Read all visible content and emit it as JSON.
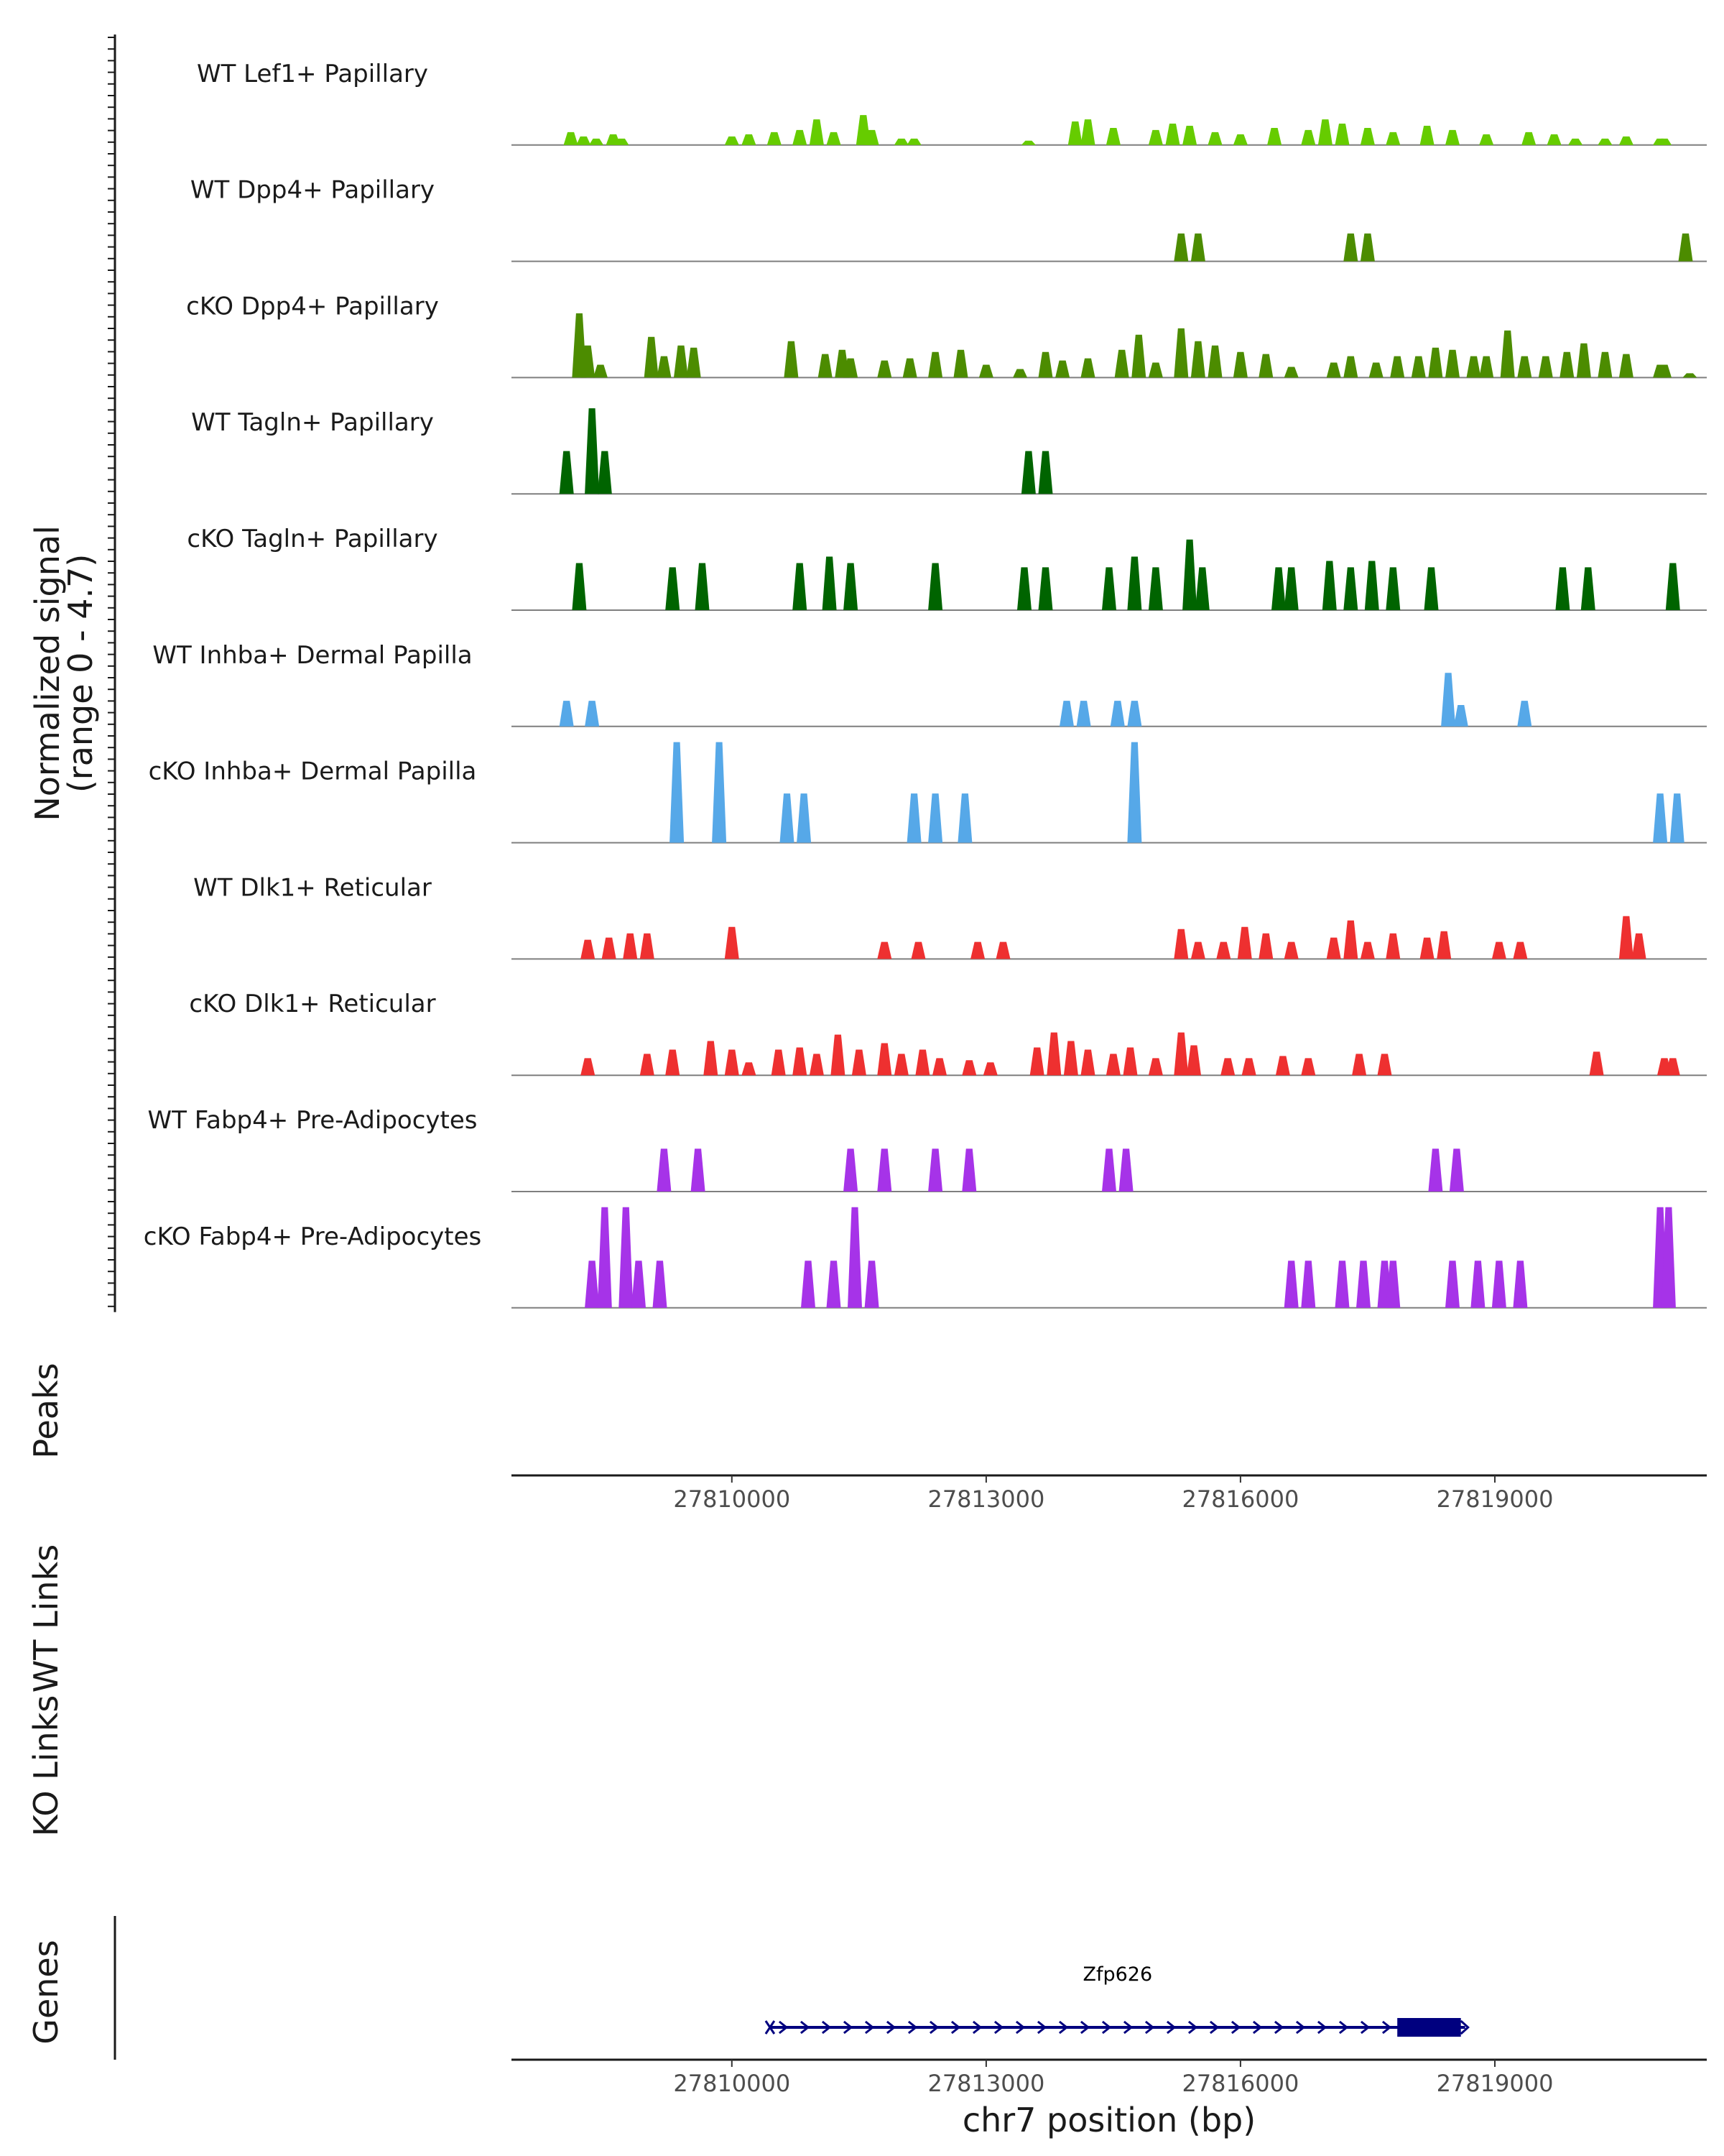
{
  "chart_data": {
    "type": "area",
    "region": {
      "chromosome": "chr7",
      "start": 27807400,
      "end": 27821500
    },
    "y_axis": {
      "title_line1": "Normalized signal",
      "title_line2": "(range 0 - 4.7)",
      "ylim": [
        0,
        4.7
      ]
    },
    "tracks": [
      {
        "name": "WT Lef1+ Papillary",
        "color": "#66cc00",
        "peaks": [
          [
            27808100,
            0.6
          ],
          [
            27808250,
            0.4
          ],
          [
            27808400,
            0.3
          ],
          [
            27808600,
            0.5
          ],
          [
            27808700,
            0.3
          ],
          [
            27810000,
            0.4
          ],
          [
            27810200,
            0.5
          ],
          [
            27810500,
            0.6
          ],
          [
            27810800,
            0.7
          ],
          [
            27811000,
            1.2
          ],
          [
            27811200,
            0.6
          ],
          [
            27811550,
            1.4
          ],
          [
            27811650,
            0.7
          ],
          [
            27812000,
            0.3
          ],
          [
            27812150,
            0.3
          ],
          [
            27813500,
            0.2
          ],
          [
            27814050,
            1.1
          ],
          [
            27814200,
            1.2
          ],
          [
            27814500,
            0.8
          ],
          [
            27815000,
            0.7
          ],
          [
            27815200,
            1.0
          ],
          [
            27815400,
            0.9
          ],
          [
            27815700,
            0.6
          ],
          [
            27816000,
            0.5
          ],
          [
            27816400,
            0.8
          ],
          [
            27816800,
            0.7
          ],
          [
            27817000,
            1.2
          ],
          [
            27817200,
            1.0
          ],
          [
            27817500,
            0.8
          ],
          [
            27817800,
            0.6
          ],
          [
            27818200,
            0.9
          ],
          [
            27818500,
            0.7
          ],
          [
            27818900,
            0.5
          ],
          [
            27819400,
            0.6
          ],
          [
            27819700,
            0.5
          ],
          [
            27819950,
            0.3
          ],
          [
            27820300,
            0.3
          ],
          [
            27820550,
            0.4
          ],
          [
            27820950,
            0.3
          ],
          [
            27821000,
            0.3
          ]
        ]
      },
      {
        "name": "WT Dpp4+ Papillary",
        "color": "#4c8c00",
        "peaks": [
          [
            27815300,
            1.3
          ],
          [
            27815500,
            1.3
          ],
          [
            27817300,
            1.3
          ],
          [
            27817500,
            1.3
          ],
          [
            27821250,
            1.3
          ]
        ]
      },
      {
        "name": "cKO Dpp4+ Papillary",
        "color": "#4c8c00",
        "peaks": [
          [
            27808200,
            3.0
          ],
          [
            27808300,
            1.5
          ],
          [
            27808450,
            0.6
          ],
          [
            27809050,
            1.9
          ],
          [
            27809200,
            1.0
          ],
          [
            27809400,
            1.5
          ],
          [
            27809550,
            1.4
          ],
          [
            27810700,
            1.7
          ],
          [
            27811100,
            1.1
          ],
          [
            27811300,
            1.3
          ],
          [
            27811400,
            0.9
          ],
          [
            27811800,
            0.8
          ],
          [
            27812100,
            0.9
          ],
          [
            27812400,
            1.2
          ],
          [
            27812700,
            1.3
          ],
          [
            27813000,
            0.6
          ],
          [
            27813400,
            0.4
          ],
          [
            27813700,
            1.2
          ],
          [
            27813900,
            0.8
          ],
          [
            27814200,
            0.9
          ],
          [
            27814600,
            1.3
          ],
          [
            27814800,
            2.0
          ],
          [
            27815000,
            0.7
          ],
          [
            27815300,
            2.3
          ],
          [
            27815500,
            1.7
          ],
          [
            27815700,
            1.5
          ],
          [
            27816000,
            1.2
          ],
          [
            27816300,
            1.1
          ],
          [
            27816600,
            0.5
          ],
          [
            27817100,
            0.7
          ],
          [
            27817300,
            1.0
          ],
          [
            27817600,
            0.7
          ],
          [
            27817850,
            1.0
          ],
          [
            27818100,
            1.0
          ],
          [
            27818300,
            1.4
          ],
          [
            27818500,
            1.3
          ],
          [
            27818750,
            1.0
          ],
          [
            27818900,
            1.0
          ],
          [
            27819150,
            2.2
          ],
          [
            27819350,
            1.0
          ],
          [
            27819600,
            1.0
          ],
          [
            27819850,
            1.2
          ],
          [
            27820050,
            1.6
          ],
          [
            27820300,
            1.2
          ],
          [
            27820550,
            1.1
          ],
          [
            27820950,
            0.6
          ],
          [
            27821000,
            0.6
          ],
          [
            27821300,
            0.2
          ]
        ]
      },
      {
        "name": "WT Tagln+ Papillary",
        "color": "#006400",
        "peaks": [
          [
            27808050,
            2.0
          ],
          [
            27808350,
            4.0
          ],
          [
            27808500,
            2.0
          ],
          [
            27813500,
            2.0
          ],
          [
            27813700,
            2.0
          ]
        ]
      },
      {
        "name": "cKO Tagln+ Papillary",
        "color": "#006400",
        "peaks": [
          [
            27808200,
            2.2
          ],
          [
            27809300,
            2.0
          ],
          [
            27809650,
            2.2
          ],
          [
            27810800,
            2.2
          ],
          [
            27811150,
            2.5
          ],
          [
            27811400,
            2.2
          ],
          [
            27812400,
            2.2
          ],
          [
            27813450,
            2.0
          ],
          [
            27813700,
            2.0
          ],
          [
            27814450,
            2.0
          ],
          [
            27814750,
            2.5
          ],
          [
            27815000,
            2.0
          ],
          [
            27815400,
            3.3
          ],
          [
            27815550,
            2.0
          ],
          [
            27816450,
            2.0
          ],
          [
            27816600,
            2.0
          ],
          [
            27817050,
            2.3
          ],
          [
            27817300,
            2.0
          ],
          [
            27817550,
            2.3
          ],
          [
            27817800,
            2.0
          ],
          [
            27818250,
            2.0
          ],
          [
            27819800,
            2.0
          ],
          [
            27820100,
            2.0
          ],
          [
            27821100,
            2.2
          ]
        ]
      },
      {
        "name": "WT Inhba+ Dermal Papilla",
        "color": "#56a8e8",
        "peaks": [
          [
            27808050,
            1.2
          ],
          [
            27808350,
            1.2
          ],
          [
            27813950,
            1.2
          ],
          [
            27814150,
            1.2
          ],
          [
            27814550,
            1.2
          ],
          [
            27814750,
            1.2
          ],
          [
            27818450,
            2.5
          ],
          [
            27818600,
            1.0
          ],
          [
            27819350,
            1.2
          ]
        ]
      },
      {
        "name": "cKO Inhba+ Dermal Papilla",
        "color": "#56a8e8",
        "peaks": [
          [
            27809350,
            4.7
          ],
          [
            27809850,
            4.7
          ],
          [
            27810650,
            2.3
          ],
          [
            27810850,
            2.3
          ],
          [
            27812150,
            2.3
          ],
          [
            27812400,
            2.3
          ],
          [
            27812750,
            2.3
          ],
          [
            27814750,
            4.7
          ],
          [
            27820950,
            2.3
          ],
          [
            27821150,
            2.3
          ]
        ]
      },
      {
        "name": "WT Dlk1+ Reticular",
        "color": "#ee3030",
        "peaks": [
          [
            27808300,
            0.9
          ],
          [
            27808550,
            1.0
          ],
          [
            27808800,
            1.2
          ],
          [
            27809000,
            1.2
          ],
          [
            27810000,
            1.5
          ],
          [
            27811800,
            0.8
          ],
          [
            27812200,
            0.8
          ],
          [
            27812900,
            0.8
          ],
          [
            27813200,
            0.8
          ],
          [
            27815300,
            1.4
          ],
          [
            27815500,
            0.8
          ],
          [
            27815800,
            0.8
          ],
          [
            27816050,
            1.5
          ],
          [
            27816300,
            1.2
          ],
          [
            27816600,
            0.8
          ],
          [
            27817100,
            1.0
          ],
          [
            27817300,
            1.8
          ],
          [
            27817500,
            0.8
          ],
          [
            27817800,
            1.2
          ],
          [
            27818200,
            1.0
          ],
          [
            27818400,
            1.3
          ],
          [
            27819050,
            0.8
          ],
          [
            27819300,
            0.8
          ],
          [
            27820550,
            2.0
          ],
          [
            27820700,
            1.2
          ]
        ]
      },
      {
        "name": "cKO Dlk1+ Reticular",
        "color": "#ee3030",
        "peaks": [
          [
            27808300,
            0.8
          ],
          [
            27809000,
            1.0
          ],
          [
            27809300,
            1.2
          ],
          [
            27809750,
            1.6
          ],
          [
            27810000,
            1.2
          ],
          [
            27810200,
            0.6
          ],
          [
            27810550,
            1.2
          ],
          [
            27810800,
            1.3
          ],
          [
            27811000,
            1.0
          ],
          [
            27811250,
            1.9
          ],
          [
            27811500,
            1.2
          ],
          [
            27811800,
            1.5
          ],
          [
            27812000,
            1.0
          ],
          [
            27812250,
            1.2
          ],
          [
            27812450,
            0.8
          ],
          [
            27812800,
            0.7
          ],
          [
            27813050,
            0.6
          ],
          [
            27813600,
            1.3
          ],
          [
            27813800,
            2.0
          ],
          [
            27814000,
            1.6
          ],
          [
            27814200,
            1.2
          ],
          [
            27814500,
            1.0
          ],
          [
            27814700,
            1.3
          ],
          [
            27815000,
            0.8
          ],
          [
            27815300,
            2.0
          ],
          [
            27815450,
            1.4
          ],
          [
            27815850,
            0.8
          ],
          [
            27816100,
            0.8
          ],
          [
            27816500,
            0.9
          ],
          [
            27816800,
            0.8
          ],
          [
            27817400,
            1.0
          ],
          [
            27817700,
            1.0
          ],
          [
            27820200,
            1.1
          ],
          [
            27821000,
            0.8
          ],
          [
            27821100,
            0.8
          ]
        ]
      },
      {
        "name": "WT Fabp4+ Pre-Adipocytes",
        "color": "#a633e8",
        "peaks": [
          [
            27809200,
            2.0
          ],
          [
            27809600,
            2.0
          ],
          [
            27811400,
            2.0
          ],
          [
            27811800,
            2.0
          ],
          [
            27812400,
            2.0
          ],
          [
            27812800,
            2.0
          ],
          [
            27814450,
            2.0
          ],
          [
            27814650,
            2.0
          ],
          [
            27818300,
            2.0
          ],
          [
            27818550,
            2.0
          ]
        ]
      },
      {
        "name": "cKO Fabp4+ Pre-Adipocytes",
        "color": "#a633e8",
        "peaks": [
          [
            27808350,
            2.2
          ],
          [
            27808500,
            4.7
          ],
          [
            27808750,
            4.7
          ],
          [
            27808900,
            2.2
          ],
          [
            27809150,
            2.2
          ],
          [
            27810900,
            2.2
          ],
          [
            27811200,
            2.2
          ],
          [
            27811450,
            4.7
          ],
          [
            27811650,
            2.2
          ],
          [
            27816600,
            2.2
          ],
          [
            27816800,
            2.2
          ],
          [
            27817200,
            2.2
          ],
          [
            27817450,
            2.2
          ],
          [
            27817700,
            2.2
          ],
          [
            27817800,
            2.2
          ],
          [
            27818500,
            2.2
          ],
          [
            27818800,
            2.2
          ],
          [
            27819050,
            2.2
          ],
          [
            27819300,
            2.2
          ],
          [
            27820950,
            4.7
          ],
          [
            27821050,
            4.7
          ]
        ]
      }
    ],
    "panels": {
      "peaks": "Peaks",
      "wt_links": "WT Links",
      "ko_links": "KO Links",
      "genes": "Genes"
    },
    "x_axis": {
      "ticks": [
        27810000,
        27813000,
        27816000,
        27819000
      ],
      "tick_labels": [
        "27810000",
        "27813000",
        "27816000",
        "27819000"
      ],
      "title": "chr7 position (bp)"
    },
    "gene": {
      "name": "Zfp626",
      "strand": "+",
      "start": 27810450,
      "end": 27818650,
      "thick_start": 27817850,
      "thick_end": 27818600,
      "color": "#00007f"
    }
  }
}
